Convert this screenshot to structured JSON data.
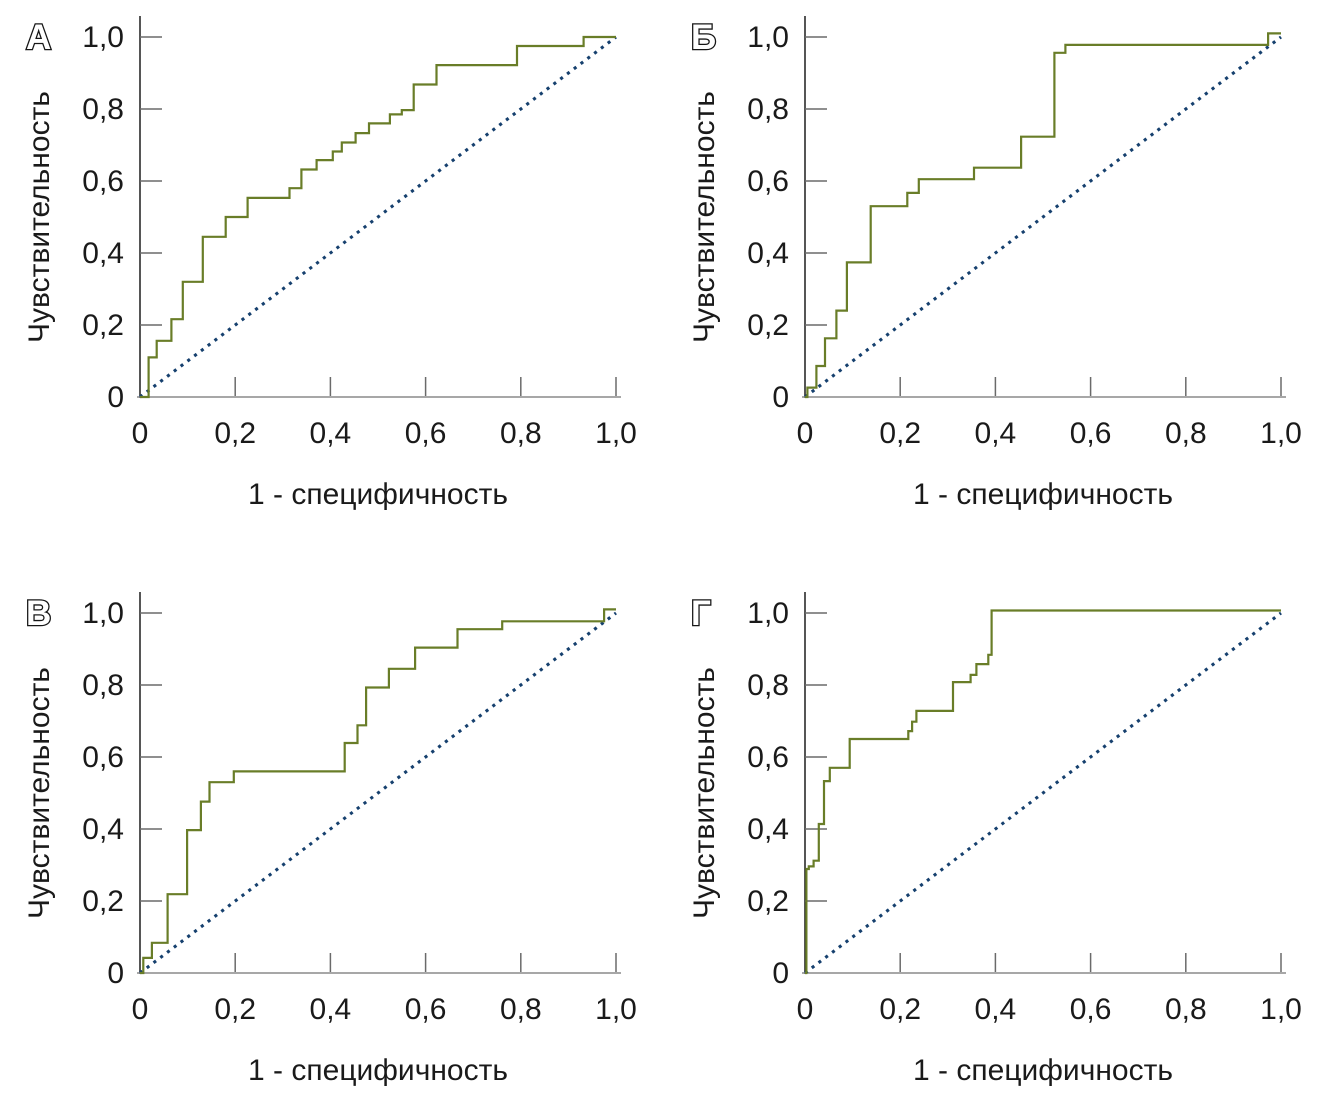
{
  "figure": {
    "background": "#ffffff",
    "y_axis_title": "Чувствительность",
    "x_axis_title": "1 - специфичность",
    "y_tick_labels": [
      "1,0",
      "0,8",
      "0,6",
      "0,4",
      "0,2",
      "0"
    ],
    "y_tick_values": [
      1.0,
      0.8,
      0.6,
      0.4,
      0.2,
      0
    ],
    "x_tick_labels": [
      "0",
      "0,2",
      "0,4",
      "0,6",
      "0,8",
      "1,0"
    ],
    "x_tick_values": [
      0,
      0.2,
      0.4,
      0.6,
      0.8,
      1.0
    ],
    "colors": {
      "roc_curve": "#697d28",
      "diagonal": "#16406e",
      "y_axis": "#2b2b2b",
      "x_axis": "#8a8a8a",
      "tick": "#6a6a6a",
      "text": "#1a1a1a"
    }
  },
  "chart_data": [
    {
      "type": "line",
      "panel": "А",
      "xlabel": "1 - специфичность",
      "ylabel": "Чувствительность",
      "xlim": [
        0,
        1.0
      ],
      "ylim": [
        0,
        1.0
      ],
      "x_ticks": [
        0,
        0.2,
        0.4,
        0.6,
        0.8,
        1.0
      ],
      "y_ticks": [
        0,
        0.2,
        0.4,
        0.6,
        0.8,
        1.0
      ],
      "grid": false,
      "legend": "none",
      "series": [
        {
          "name": "roc-curve",
          "style": "step-solid",
          "color": "#697d28",
          "points": [
            [
              0,
              0
            ],
            [
              0.018,
              0.11
            ],
            [
              0.035,
              0.156
            ],
            [
              0.066,
              0.216
            ],
            [
              0.09,
              0.32
            ],
            [
              0.132,
              0.445
            ],
            [
              0.18,
              0.5
            ],
            [
              0.226,
              0.553
            ],
            [
              0.314,
              0.58
            ],
            [
              0.339,
              0.632
            ],
            [
              0.371,
              0.658
            ],
            [
              0.405,
              0.682
            ],
            [
              0.424,
              0.707
            ],
            [
              0.453,
              0.733
            ],
            [
              0.481,
              0.76
            ],
            [
              0.525,
              0.785
            ],
            [
              0.55,
              0.797
            ],
            [
              0.575,
              0.868
            ],
            [
              0.623,
              0.922
            ],
            [
              0.792,
              0.975
            ],
            [
              0.932,
              1.0
            ],
            [
              1.0,
              1.0
            ]
          ]
        },
        {
          "name": "chance-diagonal",
          "style": "dotted",
          "color": "#16406e",
          "points": [
            [
              0,
              0
            ],
            [
              1.0,
              1.0
            ]
          ]
        }
      ]
    },
    {
      "type": "line",
      "panel": "Б",
      "xlabel": "1 - специфичность",
      "ylabel": "Чувствительность",
      "xlim": [
        0,
        1.0
      ],
      "ylim": [
        0,
        1.0
      ],
      "x_ticks": [
        0,
        0.2,
        0.4,
        0.6,
        0.8,
        1.0
      ],
      "y_ticks": [
        0,
        0.2,
        0.4,
        0.6,
        0.8,
        1.0
      ],
      "grid": false,
      "legend": "none",
      "series": [
        {
          "name": "roc-curve",
          "style": "step-solid",
          "color": "#697d28",
          "points": [
            [
              0,
              0
            ],
            [
              0.005,
              0.026
            ],
            [
              0.024,
              0.086
            ],
            [
              0.042,
              0.163
            ],
            [
              0.066,
              0.24
            ],
            [
              0.088,
              0.374
            ],
            [
              0.138,
              0.53
            ],
            [
              0.215,
              0.567
            ],
            [
              0.239,
              0.605
            ],
            [
              0.355,
              0.637
            ],
            [
              0.454,
              0.723
            ],
            [
              0.524,
              0.956
            ],
            [
              0.547,
              0.978
            ],
            [
              0.973,
              1.01
            ],
            [
              1.0,
              1.01
            ]
          ]
        },
        {
          "name": "chance-diagonal",
          "style": "dotted",
          "color": "#16406e",
          "points": [
            [
              0,
              0
            ],
            [
              1.0,
              1.0
            ]
          ]
        }
      ]
    },
    {
      "type": "line",
      "panel": "В",
      "xlabel": "1 - специфичность",
      "ylabel": "Чувствительность",
      "xlim": [
        0,
        1.0
      ],
      "ylim": [
        0,
        1.0
      ],
      "x_ticks": [
        0,
        0.2,
        0.4,
        0.6,
        0.8,
        1.0
      ],
      "y_ticks": [
        0,
        0.2,
        0.4,
        0.6,
        0.8,
        1.0
      ],
      "grid": false,
      "legend": "none",
      "series": [
        {
          "name": "roc-curve",
          "style": "step-solid",
          "color": "#697d28",
          "points": [
            [
              0,
              0
            ],
            [
              0.007,
              0.042
            ],
            [
              0.025,
              0.084
            ],
            [
              0.058,
              0.219
            ],
            [
              0.099,
              0.397
            ],
            [
              0.128,
              0.476
            ],
            [
              0.146,
              0.53
            ],
            [
              0.197,
              0.56
            ],
            [
              0.43,
              0.639
            ],
            [
              0.457,
              0.688
            ],
            [
              0.475,
              0.793
            ],
            [
              0.523,
              0.845
            ],
            [
              0.578,
              0.904
            ],
            [
              0.667,
              0.955
            ],
            [
              0.761,
              0.977
            ],
            [
              0.975,
              1.01
            ],
            [
              1.0,
              1.01
            ]
          ]
        },
        {
          "name": "chance-diagonal",
          "style": "dotted",
          "color": "#16406e",
          "points": [
            [
              0,
              0
            ],
            [
              1.0,
              1.0
            ]
          ]
        }
      ]
    },
    {
      "type": "line",
      "panel": "Г",
      "xlabel": "1 - специфичность",
      "ylabel": "Чувствительность",
      "xlim": [
        0,
        1.0
      ],
      "ylim": [
        0,
        1.0
      ],
      "x_ticks": [
        0,
        0.2,
        0.4,
        0.6,
        0.8,
        1.0
      ],
      "y_ticks": [
        0,
        0.2,
        0.4,
        0.6,
        0.8,
        1.0
      ],
      "grid": false,
      "legend": "none",
      "series": [
        {
          "name": "roc-curve",
          "style": "step-solid",
          "color": "#697d28",
          "points": [
            [
              0,
              0
            ],
            [
              0.003,
              0.289
            ],
            [
              0.008,
              0.296
            ],
            [
              0.018,
              0.312
            ],
            [
              0.029,
              0.414
            ],
            [
              0.04,
              0.533
            ],
            [
              0.052,
              0.57
            ],
            [
              0.094,
              0.65
            ],
            [
              0.217,
              0.672
            ],
            [
              0.225,
              0.698
            ],
            [
              0.234,
              0.728
            ],
            [
              0.311,
              0.808
            ],
            [
              0.348,
              0.828
            ],
            [
              0.36,
              0.858
            ],
            [
              0.385,
              0.884
            ],
            [
              0.392,
              1.007
            ],
            [
              1.0,
              1.007
            ]
          ]
        },
        {
          "name": "chance-diagonal",
          "style": "dotted",
          "color": "#16406e",
          "points": [
            [
              0,
              0
            ],
            [
              1.0,
              1.0
            ]
          ]
        }
      ]
    }
  ]
}
